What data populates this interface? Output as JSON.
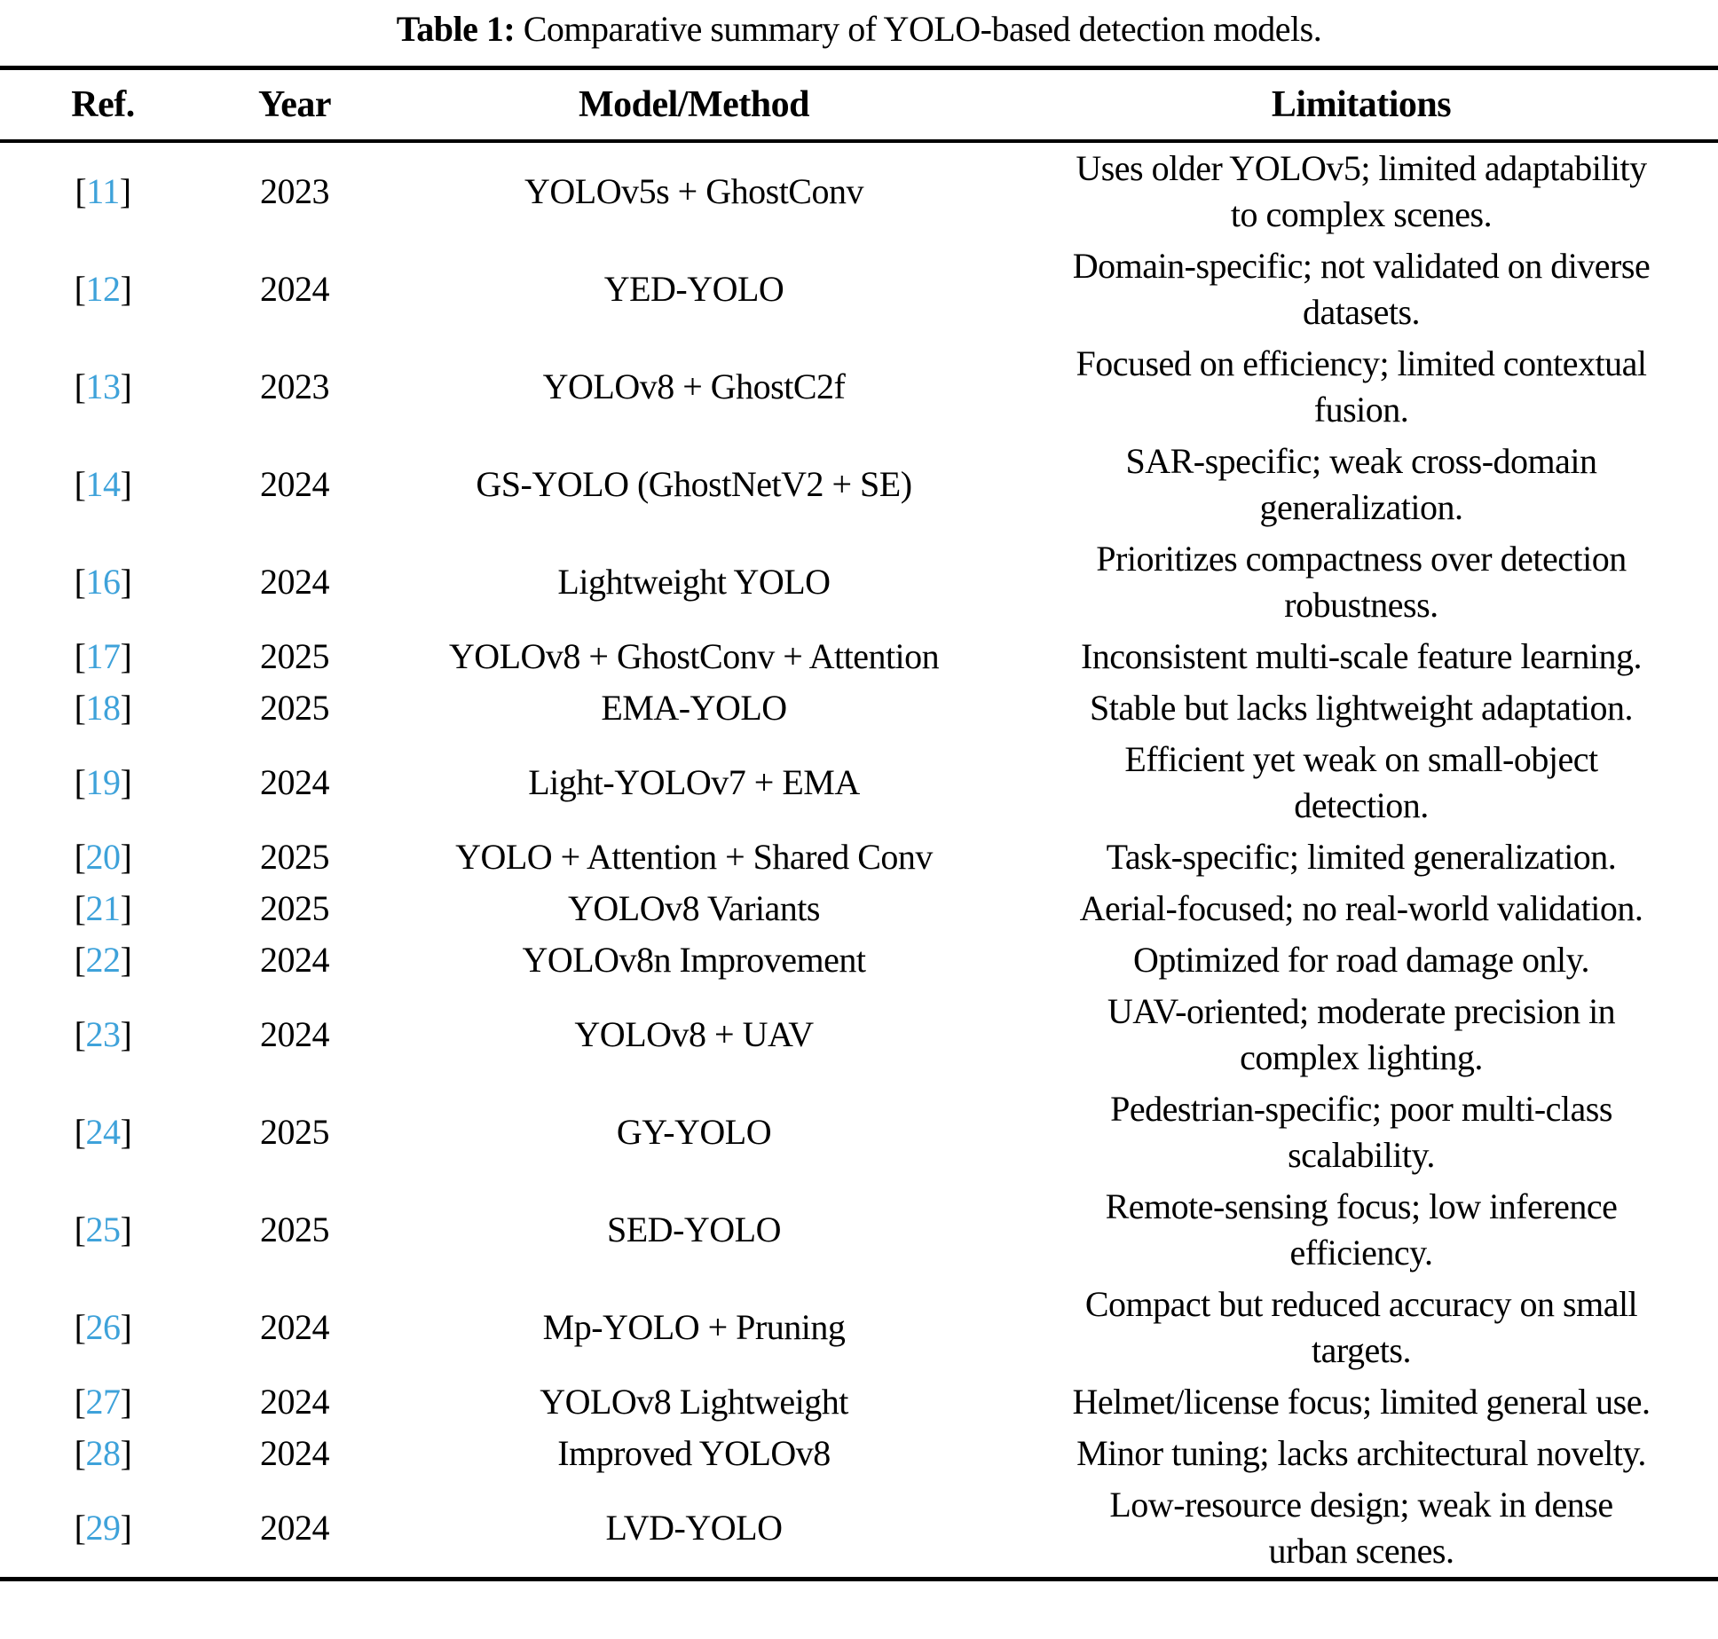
{
  "caption": {
    "label": "Table 1:",
    "text": "Comparative summary of YOLO-based detection models."
  },
  "colors": {
    "citation_blue": "#3ea2da",
    "text_black": "#000000"
  },
  "table": {
    "headers": [
      "Ref.",
      "Year",
      "Model/Method",
      "Limitations"
    ],
    "rows": [
      {
        "ref": "11",
        "year": "2023",
        "model": "YOLOv5s + GhostConv",
        "limitation_lines": [
          "Uses older YOLOv5; limited adaptability",
          "to complex scenes."
        ]
      },
      {
        "ref": "12",
        "year": "2024",
        "model": "YED-YOLO",
        "limitation_lines": [
          "Domain-specific; not validated on diverse",
          "datasets."
        ]
      },
      {
        "ref": "13",
        "year": "2023",
        "model": "YOLOv8 + GhostC2f",
        "limitation_lines": [
          "Focused on efficiency; limited contextual",
          "fusion."
        ]
      },
      {
        "ref": "14",
        "year": "2024",
        "model": "GS-YOLO (GhostNetV2 + SE)",
        "limitation_lines": [
          "SAR-specific; weak cross-domain",
          "generalization."
        ]
      },
      {
        "ref": "16",
        "year": "2024",
        "model": "Lightweight YOLO",
        "limitation_lines": [
          "Prioritizes compactness over detection",
          "robustness."
        ]
      },
      {
        "ref": "17",
        "year": "2025",
        "model": "YOLOv8 + GhostConv + Attention",
        "limitation_lines": [
          "Inconsistent multi-scale feature learning."
        ]
      },
      {
        "ref": "18",
        "year": "2025",
        "model": "EMA-YOLO",
        "limitation_lines": [
          "Stable but lacks lightweight adaptation."
        ]
      },
      {
        "ref": "19",
        "year": "2024",
        "model": "Light-YOLOv7 + EMA",
        "limitation_lines": [
          "Efficient yet weak on small-object",
          "detection."
        ]
      },
      {
        "ref": "20",
        "year": "2025",
        "model": "YOLO + Attention + Shared Conv",
        "limitation_lines": [
          "Task-specific; limited generalization."
        ]
      },
      {
        "ref": "21",
        "year": "2025",
        "model": "YOLOv8 Variants",
        "limitation_lines": [
          "Aerial-focused; no real-world validation."
        ]
      },
      {
        "ref": "22",
        "year": "2024",
        "model": "YOLOv8n Improvement",
        "limitation_lines": [
          "Optimized for road damage only."
        ]
      },
      {
        "ref": "23",
        "year": "2024",
        "model": "YOLOv8 + UAV",
        "limitation_lines": [
          "UAV-oriented; moderate precision in",
          "complex lighting."
        ]
      },
      {
        "ref": "24",
        "year": "2025",
        "model": "GY-YOLO",
        "limitation_lines": [
          "Pedestrian-specific; poor multi-class",
          "scalability."
        ]
      },
      {
        "ref": "25",
        "year": "2025",
        "model": "SED-YOLO",
        "limitation_lines": [
          "Remote-sensing focus; low inference",
          "efficiency."
        ]
      },
      {
        "ref": "26",
        "year": "2024",
        "model": "Mp-YOLO + Pruning",
        "limitation_lines": [
          "Compact but reduced accuracy on small",
          "targets."
        ]
      },
      {
        "ref": "27",
        "year": "2024",
        "model": "YOLOv8 Lightweight",
        "limitation_lines": [
          "Helmet/license focus; limited general use."
        ]
      },
      {
        "ref": "28",
        "year": "2024",
        "model": "Improved YOLOv8",
        "limitation_lines": [
          "Minor tuning; lacks architectural novelty."
        ]
      },
      {
        "ref": "29",
        "year": "2024",
        "model": "LVD-YOLO",
        "limitation_lines": [
          "Low-resource design; weak in dense",
          "urban scenes."
        ]
      }
    ]
  }
}
